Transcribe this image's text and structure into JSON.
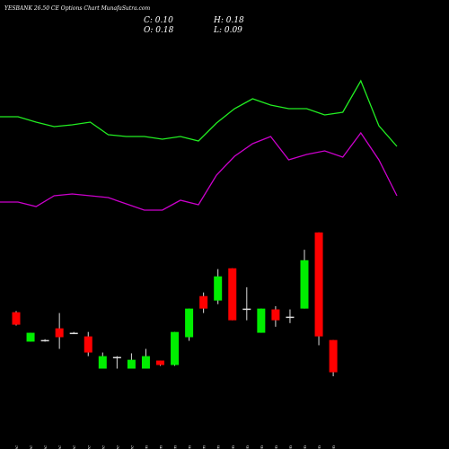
{
  "chart_data": {
    "type": "candlestick",
    "title": "YESBANK 26.50  CE Options  Chart MunafaSutra.com",
    "summary_labels": [
      "C: 0.10",
      "H: 0.18",
      "O: 0.18",
      "L: 0.09"
    ],
    "categories": [
      "13 Dec",
      "16 Dec",
      "19 Dec",
      "22 Dec",
      "24 Dec",
      "26 Dec",
      "29 Dec",
      "30 Dec",
      "31 Dec",
      "01 Jan",
      "02 Jan",
      "05 Jan",
      "06 Jan",
      "07 Jan",
      "08 Jan",
      "09 Jan",
      "12 Jan",
      "13 Jan",
      "14 Jan",
      "15 Jan",
      "16 Jan",
      "19 Jan",
      "20 Jan"
    ],
    "open": [
      0.249,
      0.176,
      0.178,
      0.209,
      0.198,
      0.189,
      0.109,
      0.138,
      0.109,
      0.109,
      0.129,
      0.118,
      0.187,
      0.289,
      0.278,
      0.358,
      0.258,
      0.198,
      0.256,
      0.238,
      0.258,
      0.447,
      0.18
    ],
    "high": [
      0.252,
      0.198,
      0.182,
      0.247,
      0.2,
      0.2,
      0.149,
      0.14,
      0.147,
      0.158,
      0.129,
      0.2,
      0.258,
      0.298,
      0.356,
      0.358,
      0.311,
      0.258,
      0.264,
      0.256,
      0.404,
      0.447,
      0.18
    ],
    "low": [
      0.216,
      0.176,
      0.176,
      0.158,
      0.196,
      0.14,
      0.109,
      0.109,
      0.109,
      0.109,
      0.116,
      0.116,
      0.178,
      0.247,
      0.269,
      0.229,
      0.229,
      0.198,
      0.213,
      0.222,
      0.258,
      0.167,
      0.09
    ],
    "close": [
      0.218,
      0.198,
      0.18,
      0.187,
      0.198,
      0.149,
      0.14,
      0.138,
      0.131,
      0.14,
      0.118,
      0.2,
      0.258,
      0.258,
      0.338,
      0.229,
      0.258,
      0.258,
      0.229,
      0.238,
      0.378,
      0.189,
      0.1
    ],
    "ylim": [
      0.07,
      0.46
    ],
    "up_color": "#00ee00",
    "down_color": "#ff0000",
    "wick_color": "#dddddd",
    "overlay_ylim": [
      0,
      1
    ],
    "overlays": [
      {
        "color": "#22ee22",
        "values": [
          0.65,
          0.65,
          0.62,
          0.595,
          0.605,
          0.62,
          0.55,
          0.54,
          0.54,
          0.525,
          0.54,
          0.515,
          0.615,
          0.695,
          0.75,
          0.715,
          0.695,
          0.695,
          0.66,
          0.675,
          0.85,
          0.6,
          0.485
        ]
      },
      {
        "color": "#cc00cc",
        "values": [
          0.175,
          0.175,
          0.15,
          0.21,
          0.22,
          0.21,
          0.2,
          0.165,
          0.13,
          0.13,
          0.185,
          0.16,
          0.325,
          0.43,
          0.5,
          0.54,
          0.41,
          0.44,
          0.46,
          0.425,
          0.56,
          0.41,
          0.21
        ]
      }
    ]
  }
}
